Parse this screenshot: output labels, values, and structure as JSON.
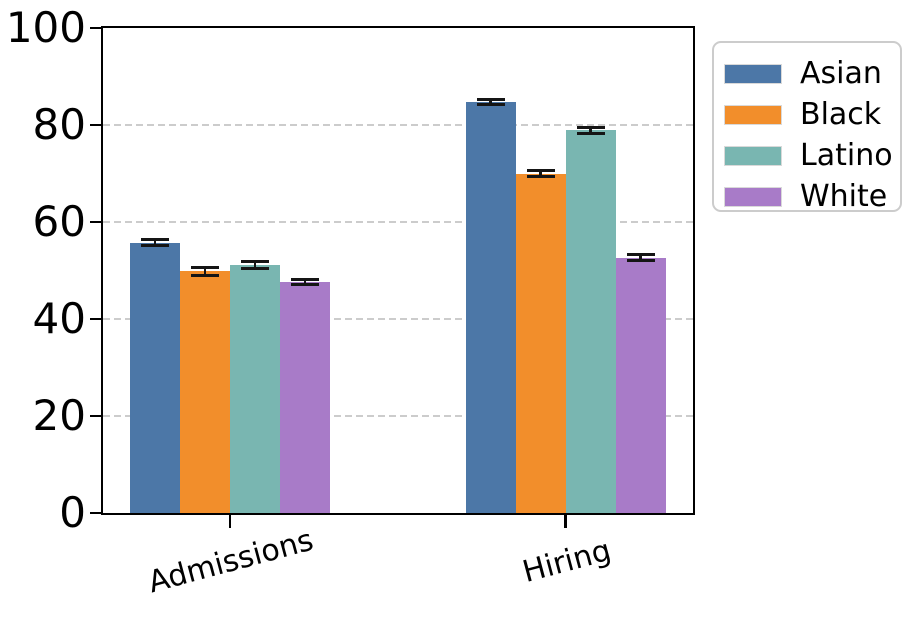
{
  "chart_data": {
    "type": "bar",
    "categories": [
      "Admissions",
      "Hiring"
    ],
    "series": [
      {
        "name": "Asian",
        "color": "#4c77a7",
        "values": [
          55.7,
          84.7
        ],
        "errors": [
          0.7,
          0.6
        ]
      },
      {
        "name": "Black",
        "color": "#f28e2b",
        "values": [
          49.8,
          70.0
        ],
        "errors": [
          0.9,
          0.8
        ]
      },
      {
        "name": "Latino",
        "color": "#79b6b1",
        "values": [
          51.1,
          78.9
        ],
        "errors": [
          0.8,
          0.7
        ]
      },
      {
        "name": "White",
        "color": "#a87bc8",
        "values": [
          47.7,
          52.6
        ],
        "errors": [
          0.6,
          0.7
        ]
      }
    ],
    "title": "",
    "xlabel": "",
    "ylabel": "",
    "ylim": [
      0,
      100
    ],
    "yticks": [
      0,
      20,
      40,
      60,
      80,
      100
    ],
    "grid": {
      "horizontal": true,
      "style": "dashed",
      "color": "#cccccc",
      "at": [
        20,
        40,
        60,
        80
      ]
    },
    "error_bars": true,
    "error_bar_color": "#151515",
    "xtick_rotation_deg": 15,
    "legend": {
      "position": "outside-top-right",
      "entries": [
        "Asian",
        "Black",
        "Latino",
        "White"
      ]
    },
    "axis_color": "#000000",
    "background_color": "#ffffff"
  }
}
